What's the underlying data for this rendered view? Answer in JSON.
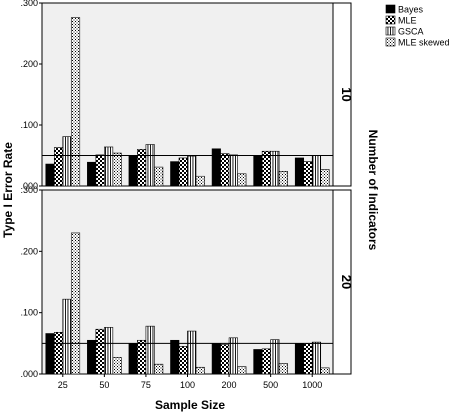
{
  "chart_data": {
    "type": "bar",
    "layout": "faceted-rows",
    "xlabel": "Sample Size",
    "ylabel": "Type I Error Rate",
    "facet_label": "Number of Indicators",
    "categories": [
      "25",
      "50",
      "75",
      "100",
      "200",
      "500",
      "1000"
    ],
    "ylim": [
      0,
      0.3
    ],
    "yticks": [
      ".000",
      ".100",
      ".200",
      ".300"
    ],
    "reference_line": 0.05,
    "legend_position": "top-right",
    "series_names": [
      "Bayes",
      "MLE",
      "GSCA",
      "MLE skewed"
    ],
    "series_colors": [
      "#000000",
      "#000000",
      "#ffffff",
      "#ffffff"
    ],
    "series_patterns": [
      "solid",
      "checker",
      "vertical-lines",
      "dots"
    ],
    "panels": [
      {
        "facet": "10",
        "series": [
          {
            "name": "Bayes",
            "values": [
              0.036,
              0.039,
              0.05,
              0.04,
              0.061,
              0.05,
              0.046
            ]
          },
          {
            "name": "MLE",
            "values": [
              0.063,
              0.051,
              0.06,
              0.046,
              0.053,
              0.057,
              0.04
            ]
          },
          {
            "name": "GSCA",
            "values": [
              0.081,
              0.064,
              0.068,
              0.049,
              0.051,
              0.057,
              0.05
            ]
          },
          {
            "name": "MLE skewed",
            "values": [
              0.276,
              0.054,
              0.031,
              0.016,
              0.02,
              0.024,
              0.027
            ]
          }
        ]
      },
      {
        "facet": "20",
        "series": [
          {
            "name": "Bayes",
            "values": [
              0.066,
              0.055,
              0.05,
              0.055,
              0.05,
              0.04,
              0.05
            ]
          },
          {
            "name": "MLE",
            "values": [
              0.068,
              0.073,
              0.055,
              0.045,
              0.048,
              0.041,
              0.05
            ]
          },
          {
            "name": "GSCA",
            "values": [
              0.122,
              0.076,
              0.078,
              0.07,
              0.059,
              0.056,
              0.052
            ]
          },
          {
            "name": "MLE skewed",
            "values": [
              0.23,
              0.027,
              0.016,
              0.011,
              0.012,
              0.017,
              0.01
            ]
          }
        ]
      }
    ]
  }
}
